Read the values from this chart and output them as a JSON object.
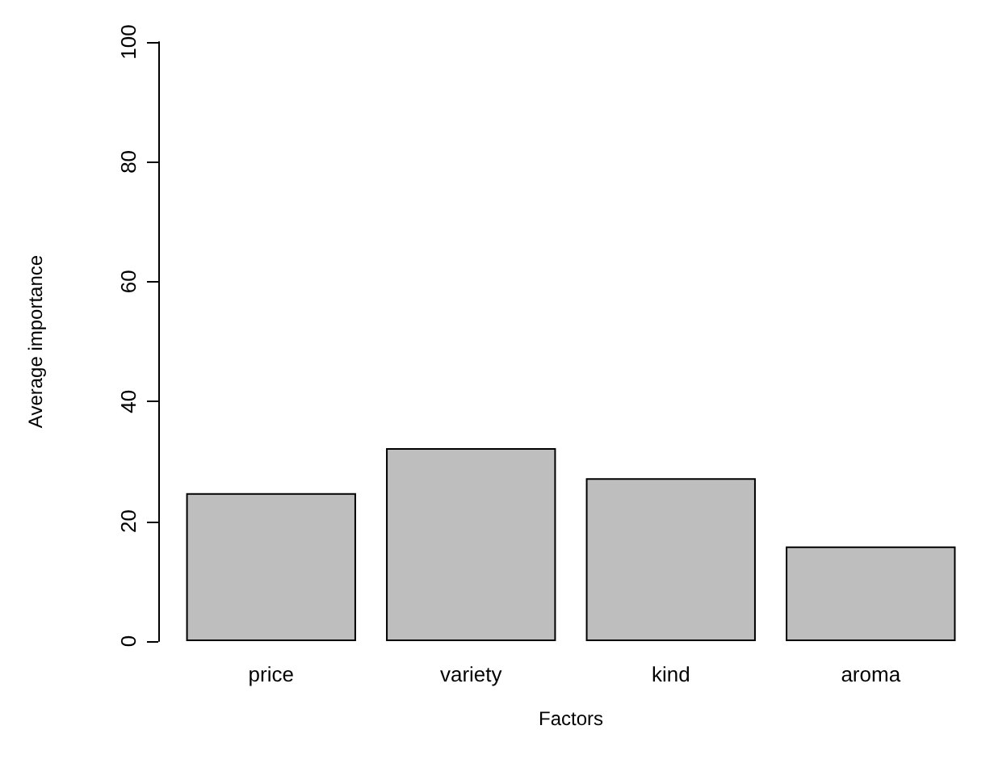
{
  "chart_data": {
    "type": "bar",
    "xlabel": "Factors",
    "ylabel": "Average importance",
    "categories": [
      "price",
      "variety",
      "kind",
      "aroma"
    ],
    "values": [
      24.7,
      32.2,
      27.2,
      15.8
    ],
    "color": "#bebebe",
    "ylim": [
      0,
      100
    ],
    "yticks": [
      0,
      20,
      40,
      60,
      80,
      100
    ],
    "grid": false
  }
}
